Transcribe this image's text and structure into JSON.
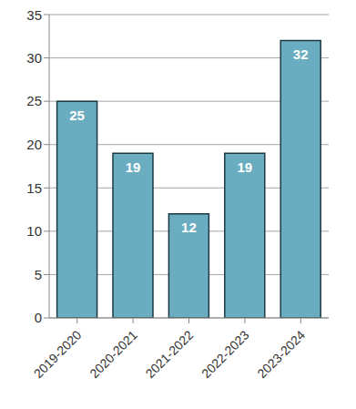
{
  "chart_data": {
    "type": "bar",
    "categories": [
      "2019-2020",
      "2020-2021",
      "2021-2022",
      "2022-2023",
      "2023-2024"
    ],
    "values": [
      25,
      19,
      12,
      19,
      32
    ],
    "color": "#6aadc1",
    "ylim": [
      0,
      35
    ],
    "yticks": [
      0,
      5,
      10,
      15,
      20,
      25,
      30,
      35
    ],
    "grid": true,
    "data_labels": true
  }
}
